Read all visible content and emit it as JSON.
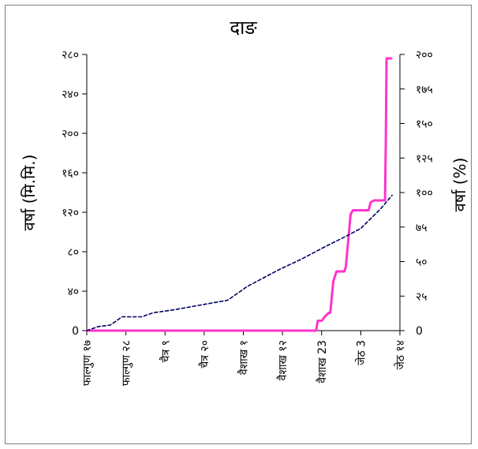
{
  "chart_data": {
    "type": "line",
    "title": "दाङ",
    "ylabel_left": "वर्षा (मि.मि.)",
    "ylabel_right": "वर्षा (%)",
    "xlabel": "",
    "categories": [
      "फाल्गुण १७",
      "फाल्गुण २८",
      "चैत्र ९",
      "चैत्र २०",
      "वैशाख १",
      "वैशाख १२",
      "वैशाख 23",
      "जेठ 3",
      "जेठ १४"
    ],
    "y_left": {
      "ylim": [
        0,
        280
      ],
      "ticks": [
        0,
        40,
        80,
        120,
        160,
        200,
        240,
        280
      ],
      "tick_labels": [
        "0",
        "४०",
        "८०",
        "१२०",
        "१६०",
        "२००",
        "२४०",
        "२८०"
      ]
    },
    "y_right": {
      "ylim": [
        0,
        200
      ],
      "ticks": [
        0,
        25,
        50,
        75,
        100,
        125,
        150,
        175,
        200
      ],
      "tick_labels": [
        "0",
        "२५",
        "५०",
        "७५",
        "१००",
        "१२५",
        "१५०",
        "१७५",
        "२००"
      ]
    },
    "grid": false,
    "series": [
      {
        "axis": "left",
        "color": "#ff33cc",
        "style": "solid",
        "points": [
          [
            0,
            0
          ],
          [
            56,
            0
          ],
          [
            58.6,
            0
          ],
          [
            59,
            10
          ],
          [
            60,
            10
          ],
          [
            61,
            15
          ],
          [
            61.8,
            18
          ],
          [
            62.2,
            18
          ],
          [
            63,
            50
          ],
          [
            63.8,
            60
          ],
          [
            65.8,
            60
          ],
          [
            66.2,
            65
          ],
          [
            67.4,
            118
          ],
          [
            68,
            122
          ],
          [
            72,
            122
          ],
          [
            72.5,
            130
          ],
          [
            73.4,
            132
          ],
          [
            76.2,
            132
          ],
          [
            76.4,
            190
          ],
          [
            76.6,
            276
          ],
          [
            77.8,
            276
          ]
        ]
      },
      {
        "axis": "right",
        "color": "#000066",
        "style": "dashed",
        "points": [
          [
            0,
            0
          ],
          [
            3,
            3
          ],
          [
            6,
            4
          ],
          [
            9,
            10
          ],
          [
            14,
            10
          ],
          [
            17,
            13
          ],
          [
            22,
            15
          ],
          [
            28,
            18
          ],
          [
            36,
            22
          ],
          [
            41,
            32
          ],
          [
            49,
            44
          ],
          [
            55,
            52
          ],
          [
            61,
            61
          ],
          [
            66,
            68
          ],
          [
            70,
            74
          ],
          [
            75,
            88
          ],
          [
            78,
            98
          ]
        ]
      }
    ],
    "colors": {
      "pink": "#ff33cc",
      "navy": "#000066",
      "frame": "#808080"
    }
  }
}
